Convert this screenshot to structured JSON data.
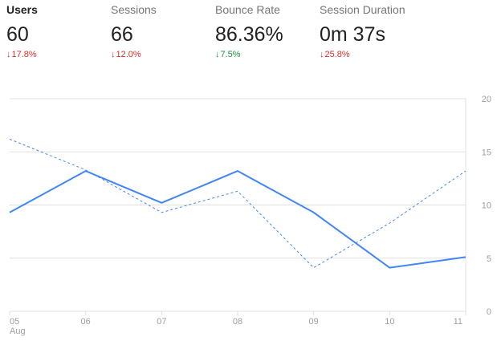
{
  "metrics": [
    {
      "label": "Users",
      "value": "60",
      "delta": "17.8%",
      "direction": "down",
      "sentiment": "bad",
      "active": true
    },
    {
      "label": "Sessions",
      "value": "66",
      "delta": "12.0%",
      "direction": "down",
      "sentiment": "bad",
      "active": false
    },
    {
      "label": "Bounce Rate",
      "value": "86.36%",
      "delta": "7.5%",
      "direction": "down",
      "sentiment": "good",
      "active": false
    },
    {
      "label": "Session Duration",
      "value": "0m 37s",
      "delta": "25.8%",
      "direction": "down",
      "sentiment": "bad",
      "active": false
    }
  ],
  "colors": {
    "series": "#4285f4",
    "bad": "#d93025",
    "good": "#1e8e3e",
    "grid": "#e0e0e0",
    "tick": "#9e9e9e"
  },
  "chart_data": {
    "type": "line",
    "categories": [
      "05",
      "06",
      "07",
      "08",
      "09",
      "10",
      "11"
    ],
    "x_sublabel": "Aug",
    "series": [
      {
        "style": "solid",
        "values": [
          9.3,
          13.2,
          10.2,
          13.2,
          9.3,
          4.1,
          5.1
        ]
      },
      {
        "style": "dashed",
        "values": [
          16.2,
          13.3,
          9.3,
          11.3,
          4.1,
          8.3,
          13.2
        ]
      }
    ],
    "ylim": [
      0,
      20
    ],
    "y_ticks": [
      0,
      5,
      10,
      15,
      20
    ],
    "y_axis_side": "right",
    "grid": true
  }
}
